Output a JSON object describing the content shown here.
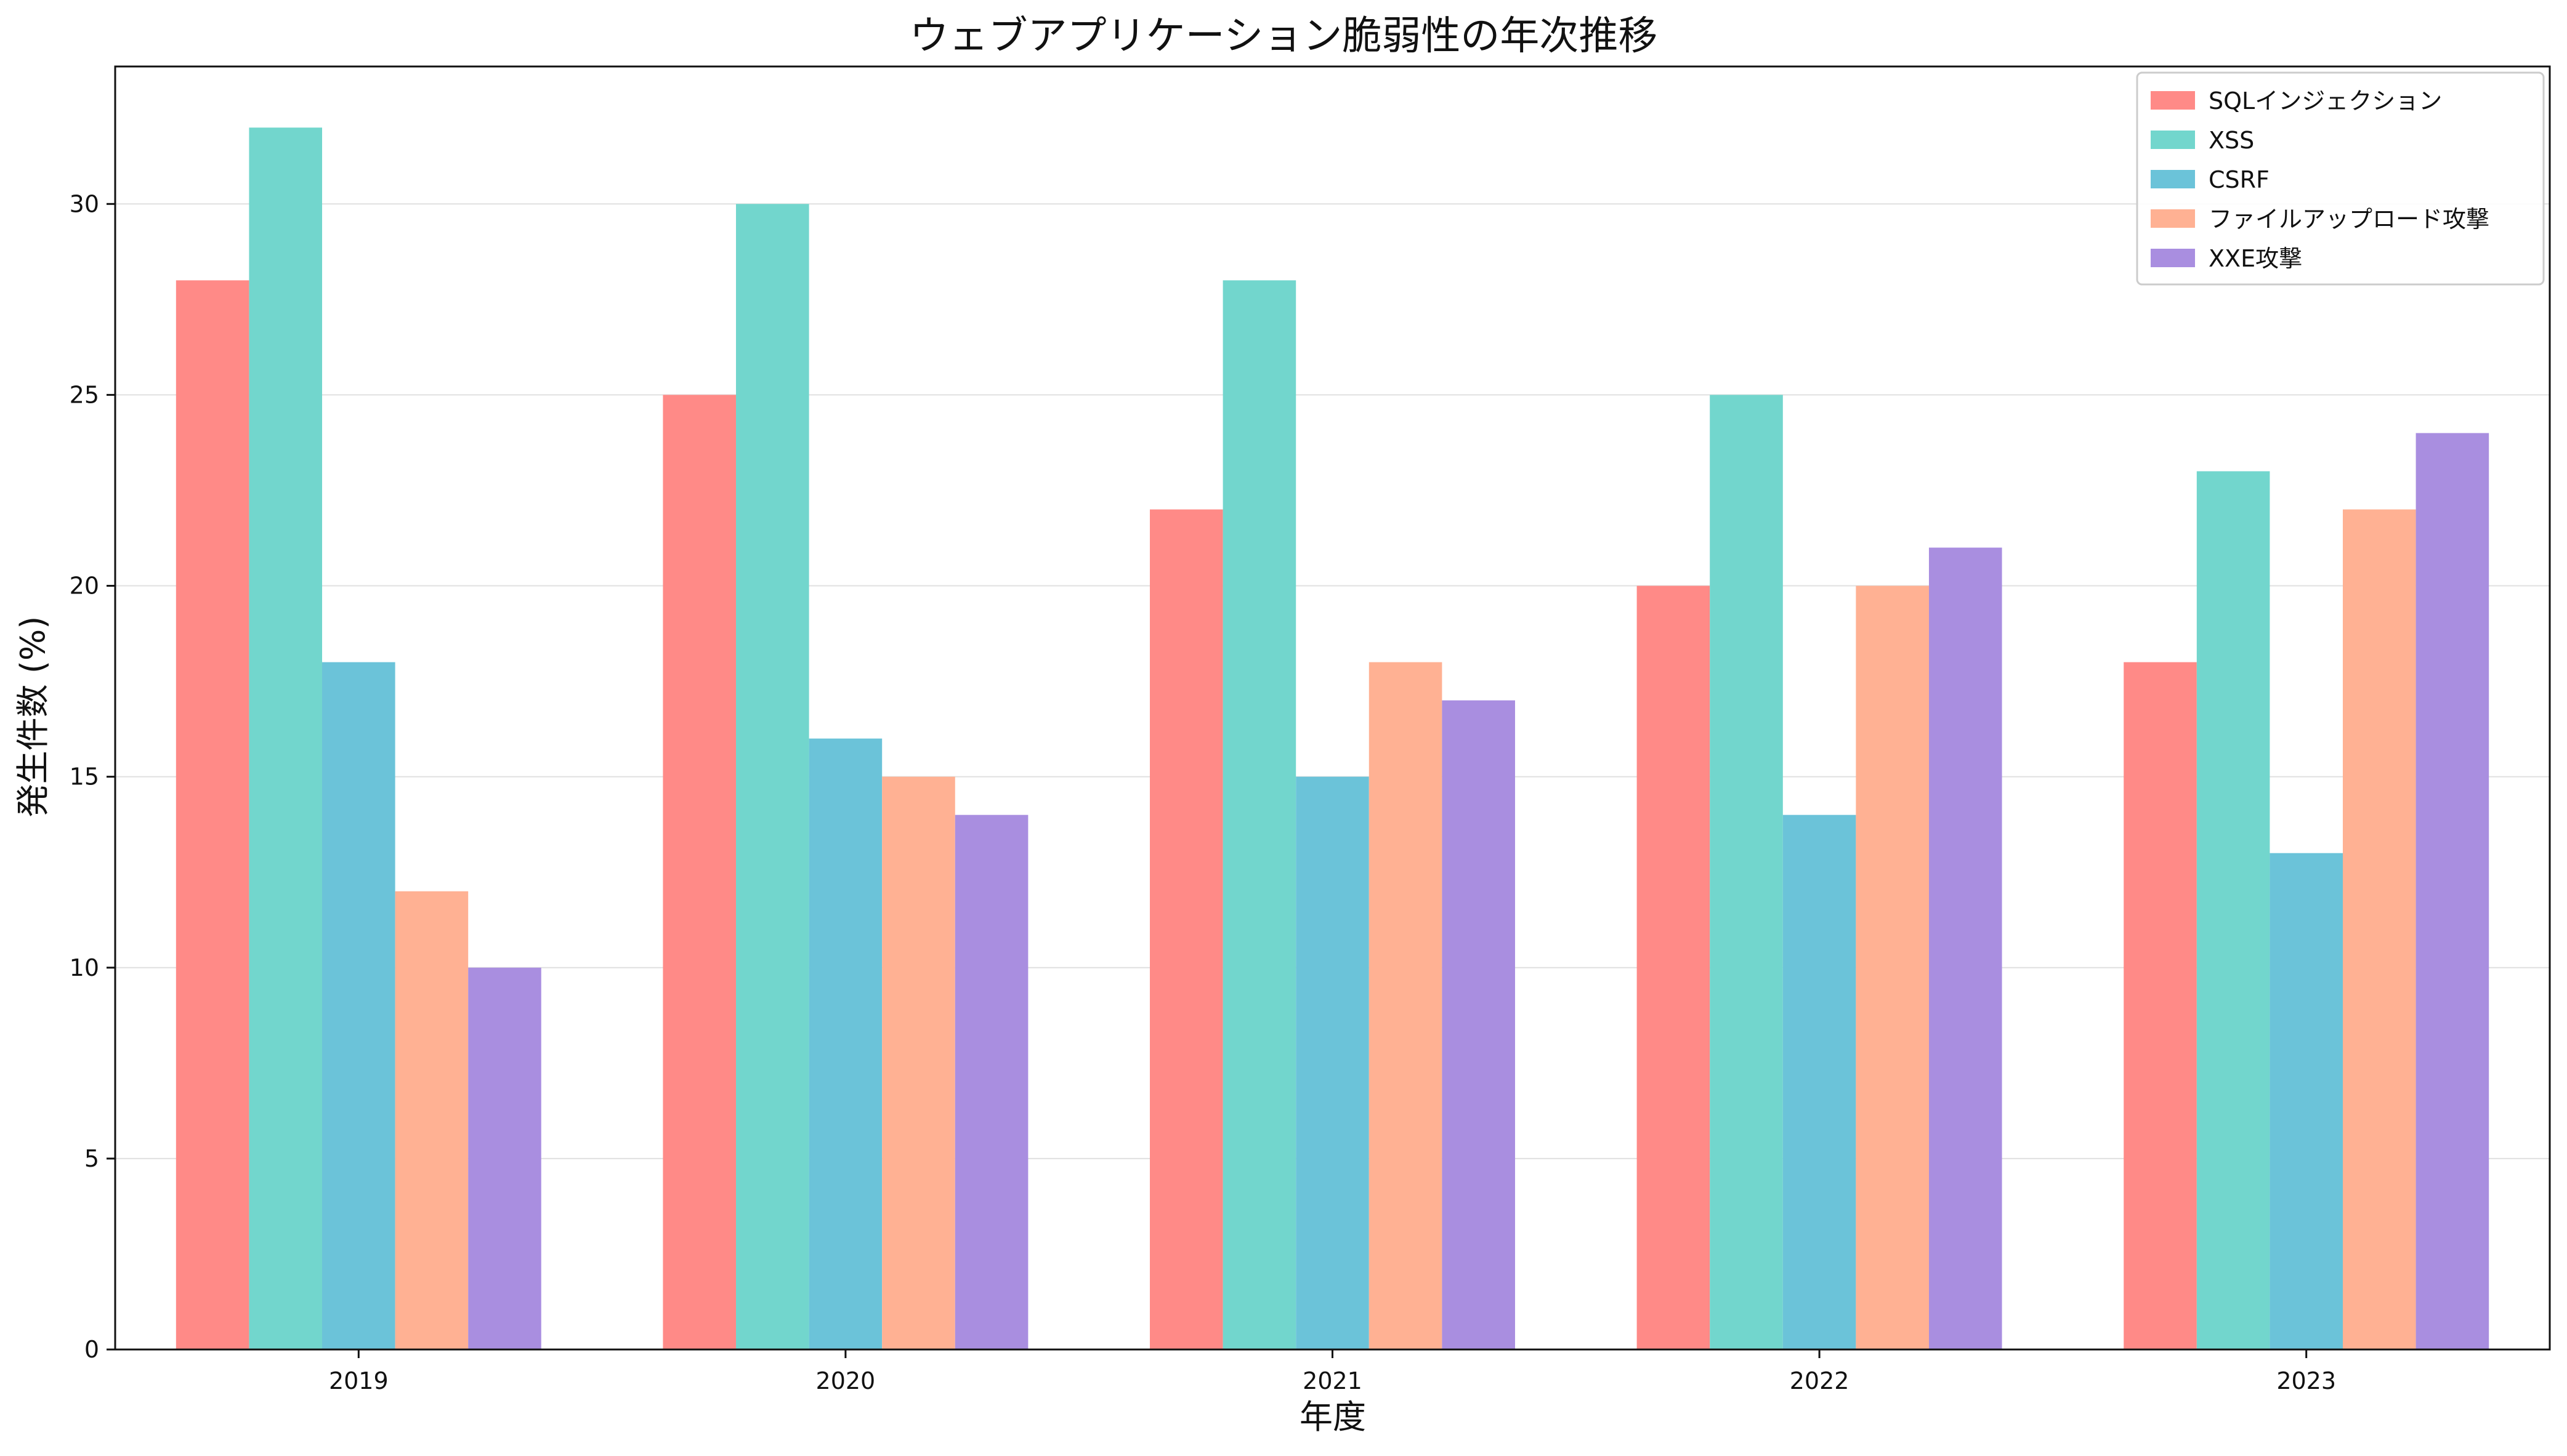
{
  "chart_data": {
    "type": "bar",
    "title": "ウェブアプリケーション脆弱性の年次推移",
    "xlabel": "年度",
    "ylabel": "発生件数 (%)",
    "categories": [
      "2019",
      "2020",
      "2021",
      "2022",
      "2023"
    ],
    "ylim": [
      0,
      33.6
    ],
    "yticks": [
      0,
      5,
      10,
      15,
      20,
      25,
      30
    ],
    "grid": "horizontal",
    "legend_position": "top-right",
    "series": [
      {
        "name": "SQLインジェクション",
        "color": "#ff8a87",
        "values": [
          28,
          25,
          22,
          20,
          18
        ]
      },
      {
        "name": "XSS",
        "color": "#72d6cd",
        "values": [
          32,
          30,
          28,
          25,
          23
        ]
      },
      {
        "name": "CSRF",
        "color": "#6bc3d9",
        "values": [
          18,
          16,
          15,
          14,
          13
        ]
      },
      {
        "name": "ファイルアップロード攻撃",
        "color": "#ffb193",
        "values": [
          12,
          15,
          18,
          20,
          22
        ]
      },
      {
        "name": "XXE攻撃",
        "color": "#a98ee0",
        "values": [
          10,
          14,
          17,
          21,
          24
        ]
      }
    ]
  }
}
